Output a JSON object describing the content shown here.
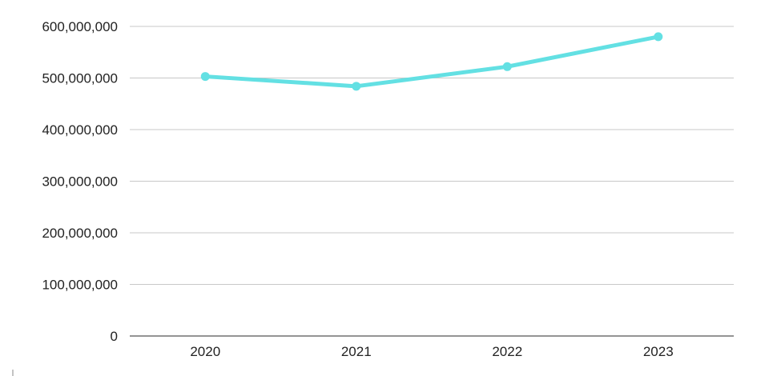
{
  "colors": {
    "series": "#63e0e3",
    "grid": "#c8c8c8",
    "axis": "#555555",
    "text": "#222222"
  },
  "chart_data": {
    "type": "line",
    "title": "",
    "xlabel": "",
    "ylabel": "",
    "categories": [
      "2020",
      "2021",
      "2022",
      "2023"
    ],
    "ylim": [
      0,
      600000000
    ],
    "yticks": [
      0,
      100000000,
      200000000,
      300000000,
      400000000,
      500000000,
      600000000
    ],
    "ytick_labels": [
      "0",
      "100,000,000",
      "200,000,000",
      "300,000,000",
      "400,000,000",
      "500,000,000",
      "600,000,000"
    ],
    "grid": true,
    "legend": "none",
    "series": [
      {
        "values": [
          503000000,
          484000000,
          522000000,
          580000000
        ]
      }
    ]
  }
}
